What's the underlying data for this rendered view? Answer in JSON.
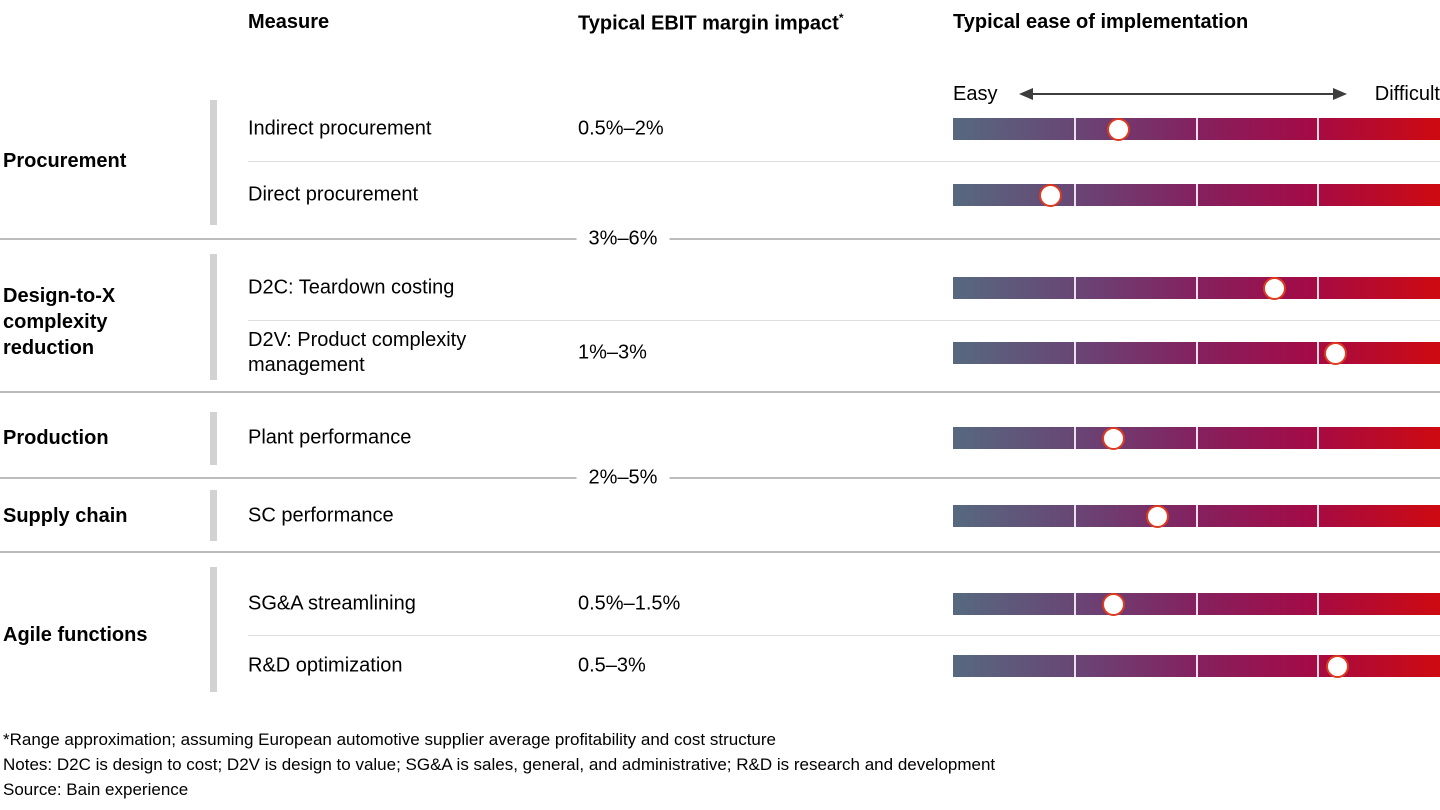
{
  "header": {
    "col_measure": "Measure",
    "col_ebit": "Typical EBIT margin impact",
    "col_ebit_marker": "*",
    "col_ease": "Typical ease of implementation"
  },
  "scale": {
    "left_label": "Easy",
    "right_label": "Difficult"
  },
  "footnotes": [
    "*Range approximation; assuming European automotive supplier average profitability and cost structure",
    "Notes: D2C is design to cost; D2V is design to value; SG&A is sales, general, and administrative; R&D is research and development",
    "Source: Bain experience"
  ],
  "colors": {
    "bar_gradient_start": "#56697f",
    "bar_gradient_mid": "#84215f",
    "bar_gradient_end": "#ce0a11",
    "dot_fill": "#ffffff",
    "dot_ring": "#dd3a20",
    "group_tick": "#d2d2d2"
  },
  "chart_data": {
    "type": "table",
    "title": "",
    "columns": [
      "Measure",
      "Typical EBIT margin impact*",
      "Typical ease of implementation"
    ],
    "ease_scale": {
      "min_label": "Easy",
      "max_label": "Difficult",
      "range": [
        0,
        100
      ],
      "segments": 4
    },
    "groups": [
      {
        "name": "Procurement",
        "rows": [
          {
            "measure": "Indirect procurement",
            "ebit_impact": "0.5%–2%",
            "ease_position_pct": 34
          },
          {
            "measure": "Direct procurement",
            "ebit_impact": "",
            "ease_position_pct": 20
          }
        ]
      },
      {
        "name": "Design-to-X complexity reduction",
        "rows": [
          {
            "measure": "D2C: Teardown costing",
            "ebit_impact": "",
            "ease_position_pct": 66
          },
          {
            "measure": "D2V: Product complexity management",
            "ebit_impact": "1%–3%",
            "ease_position_pct": 78.5
          }
        ]
      },
      {
        "name": "Production",
        "rows": [
          {
            "measure": "Plant performance",
            "ebit_impact": "",
            "ease_position_pct": 33
          }
        ]
      },
      {
        "name": "Supply chain",
        "rows": [
          {
            "measure": "SC performance",
            "ebit_impact": "",
            "ease_position_pct": 42
          }
        ]
      },
      {
        "name": "Agile functions",
        "rows": [
          {
            "measure": "SG&A streamlining",
            "ebit_impact": "0.5%–1.5%",
            "ease_position_pct": 33
          },
          {
            "measure": "R&D optimization",
            "ebit_impact": "0.5–3%",
            "ease_position_pct": 79
          }
        ]
      }
    ],
    "shared_ebit_labels": [
      {
        "label": "3%–6%",
        "applies_to": [
          "Direct procurement",
          "D2C: Teardown costing"
        ]
      },
      {
        "label": "2%–5%",
        "applies_to": [
          "Plant performance",
          "SC performance"
        ]
      }
    ]
  }
}
